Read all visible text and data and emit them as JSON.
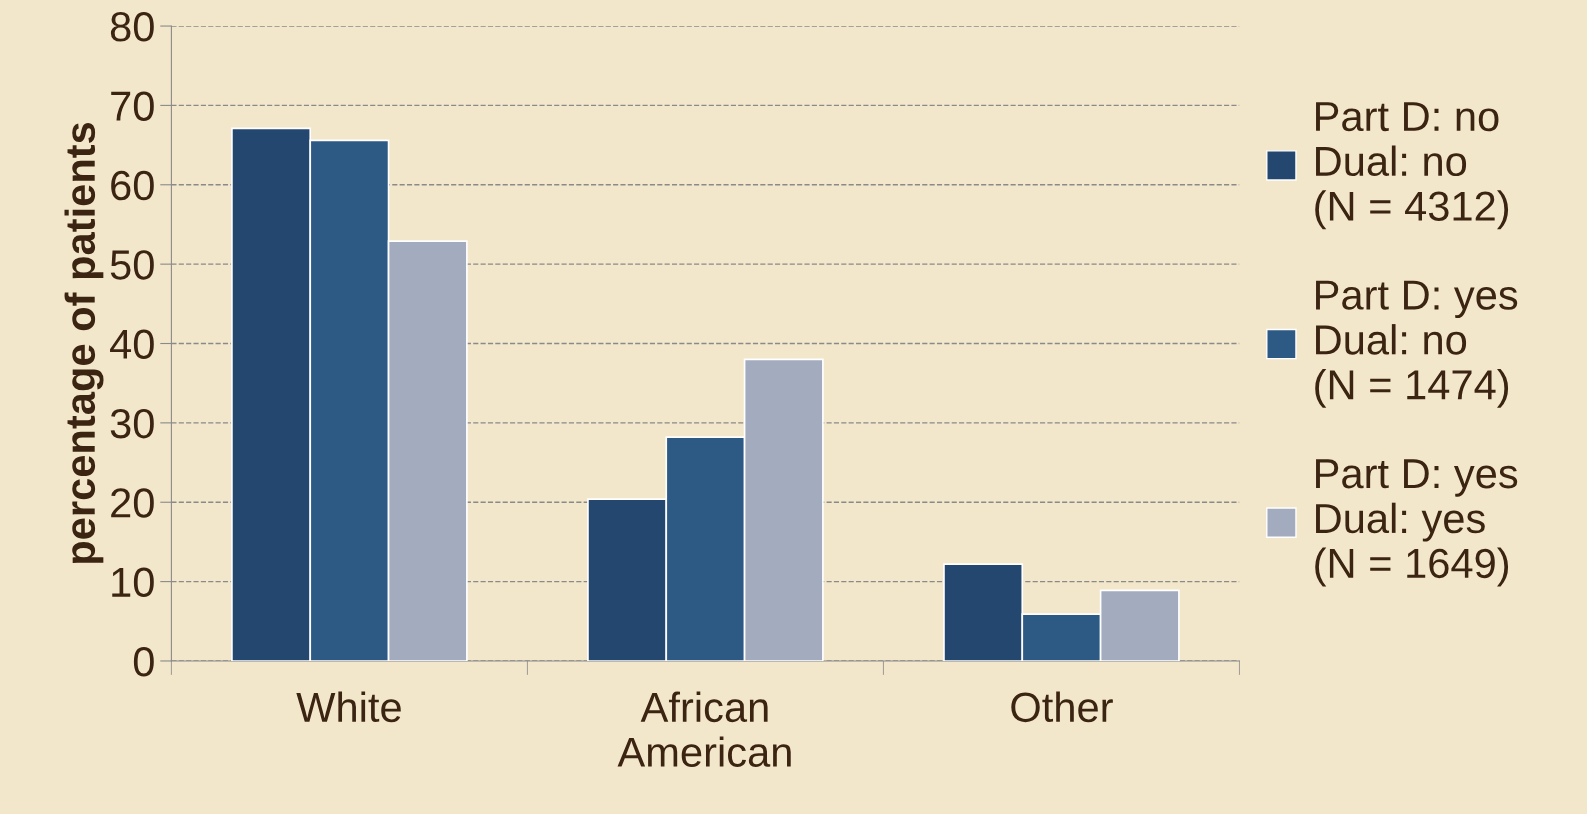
{
  "chart_data": {
    "type": "bar",
    "ylabel": "percentage of patients",
    "categories": [
      "White",
      "African\nAmerican",
      "Other"
    ],
    "series": [
      {
        "name": "Part D: no\nDual: no\n(N = 4312)",
        "color": "#23476e",
        "values": [
          67.1,
          20.4,
          12.2
        ]
      },
      {
        "name": "Part D: yes\nDual: no\n(N = 1474)",
        "color": "#2d5a85",
        "values": [
          65.6,
          28.2,
          5.9
        ]
      },
      {
        "name": "Part D: yes\nDual: yes\n(N = 1649)",
        "color": "#a3abbe",
        "values": [
          52.9,
          38.0,
          8.9
        ]
      }
    ],
    "ylim": [
      0,
      80
    ],
    "yticks": [
      0,
      10,
      20,
      30,
      40,
      50,
      60,
      70,
      80
    ],
    "grid": "y",
    "legend": "right"
  }
}
